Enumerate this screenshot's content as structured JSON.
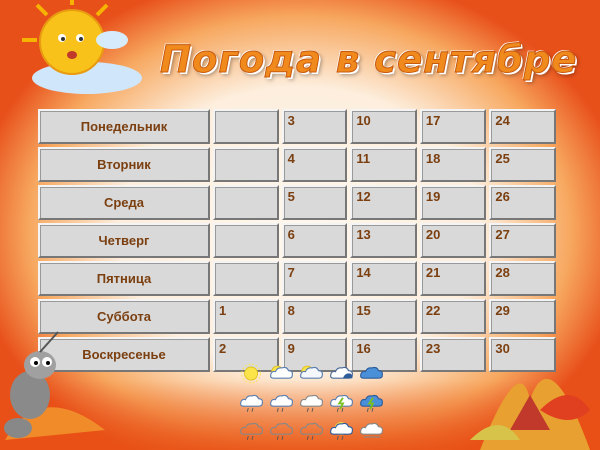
{
  "title": "Погода в сентябре",
  "calendar": {
    "rows": [
      {
        "day": "Понедельник",
        "dates": [
          "",
          "3",
          "10",
          "17",
          "24"
        ]
      },
      {
        "day": "Вторник",
        "dates": [
          "",
          "4",
          "11",
          "18",
          "25"
        ]
      },
      {
        "day": "Среда",
        "dates": [
          "",
          "5",
          "12",
          "19",
          "26"
        ]
      },
      {
        "day": "Четверг",
        "dates": [
          "",
          "6",
          "13",
          "20",
          "27"
        ]
      },
      {
        "day": "Пятница",
        "dates": [
          "",
          "7",
          "14",
          "21",
          "28"
        ]
      },
      {
        "day": "Суббота",
        "dates": [
          "1",
          "8",
          "15",
          "22",
          "29"
        ]
      },
      {
        "day": "Воскресенье",
        "dates": [
          "2",
          "9",
          "16",
          "23",
          "30"
        ]
      }
    ]
  },
  "weather_icons": [
    "sun",
    "sun-cloud",
    "partly-cloudy",
    "cloudy-dark",
    "overcast",
    "light-rain",
    "rain",
    "rain-outline",
    "thunderstorm",
    "thunderstorm-dark",
    "drizzle",
    "drizzle-2",
    "drizzle-3",
    "night-rain",
    "cloud-fog"
  ],
  "colors": {
    "accent": "#f08a1c",
    "text": "#7b3f10",
    "cell": "#d9d9d9"
  }
}
